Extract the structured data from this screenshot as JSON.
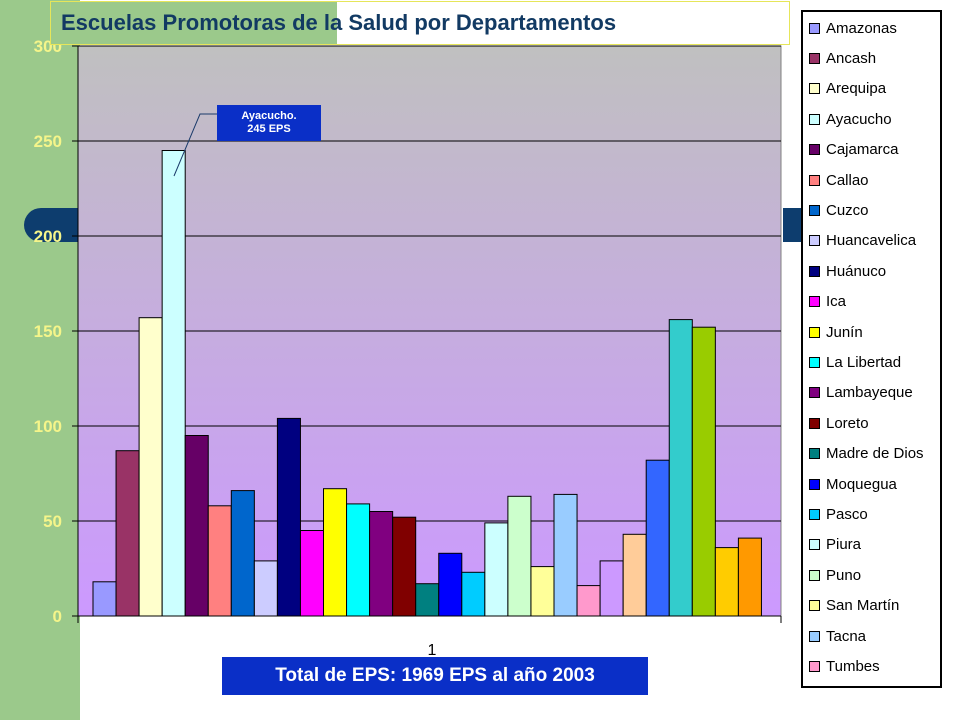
{
  "title": "Escuelas Promotoras de la Salud por Departamentos",
  "total_text": "Total de EPS: 1969 EPS al año 2003",
  "callout": {
    "line1": "Ayacucho.",
    "line2": "245 EPS"
  },
  "colors": {
    "side_band": "#9bc98b",
    "accent_navy": "#0d3d6e",
    "plot_top": "#c0c0c0",
    "plot_bottom": "#cc99ff",
    "tick_label": "#f5f58a",
    "callout_bg": "#0a2fc7"
  },
  "chart_data": {
    "type": "bar",
    "categories": [
      "1"
    ],
    "xlabel": "",
    "ylabel": "",
    "ylim": [
      0,
      300
    ],
    "y_ticks": [
      0,
      50,
      100,
      150,
      200,
      250,
      300
    ],
    "grid": true,
    "legend_position": "right",
    "series": [
      {
        "name": "Amazonas",
        "color": "#9999ff",
        "values": [
          18
        ]
      },
      {
        "name": "Ancash",
        "color": "#993366",
        "values": [
          87
        ]
      },
      {
        "name": "Arequipa",
        "color": "#ffffcc",
        "values": [
          157
        ]
      },
      {
        "name": "Ayacucho",
        "color": "#ccffff",
        "values": [
          245
        ]
      },
      {
        "name": "Cajamarca",
        "color": "#660066",
        "values": [
          95
        ]
      },
      {
        "name": "Callao",
        "color": "#ff8080",
        "values": [
          58
        ]
      },
      {
        "name": "Cuzco",
        "color": "#0066cc",
        "values": [
          66
        ]
      },
      {
        "name": "Huancavelica",
        "color": "#ccccff",
        "values": [
          29
        ]
      },
      {
        "name": "Huánuco",
        "color": "#000080",
        "values": [
          104
        ]
      },
      {
        "name": "Ica",
        "color": "#ff00ff",
        "values": [
          45
        ]
      },
      {
        "name": "Junín",
        "color": "#ffff00",
        "values": [
          67
        ]
      },
      {
        "name": "La Libertad",
        "color": "#00ffff",
        "values": [
          59
        ]
      },
      {
        "name": "Lambayeque",
        "color": "#800080",
        "values": [
          55
        ]
      },
      {
        "name": "Loreto",
        "color": "#800000",
        "values": [
          52
        ]
      },
      {
        "name": "Madre de Dios",
        "color": "#008080",
        "values": [
          17
        ]
      },
      {
        "name": "Moquegua",
        "color": "#0000ff",
        "values": [
          33
        ]
      },
      {
        "name": "Pasco",
        "color": "#00ccff",
        "values": [
          23
        ]
      },
      {
        "name": "Piura",
        "color": "#ccffff",
        "values": [
          49
        ]
      },
      {
        "name": "Puno",
        "color": "#ccffcc",
        "values": [
          63
        ]
      },
      {
        "name": "San Martín",
        "color": "#ffff99",
        "values": [
          26
        ]
      },
      {
        "name": "Tacna",
        "color": "#99ccff",
        "values": [
          64
        ]
      },
      {
        "name": "Tumbes",
        "color": "#ff99cc",
        "values": [
          16
        ]
      },
      {
        "name": "",
        "color": "#cc99ff",
        "values": [
          29
        ]
      },
      {
        "name": "",
        "color": "#ffcc99",
        "values": [
          43
        ]
      },
      {
        "name": "",
        "color": "#3366ff",
        "values": [
          82
        ]
      },
      {
        "name": "",
        "color": "#33cccc",
        "values": [
          156
        ]
      },
      {
        "name": "",
        "color": "#99cc00",
        "values": [
          152
        ]
      },
      {
        "name": "",
        "color": "#ffcc00",
        "values": [
          36
        ]
      },
      {
        "name": "",
        "color": "#ff9900",
        "values": [
          41
        ]
      }
    ]
  }
}
